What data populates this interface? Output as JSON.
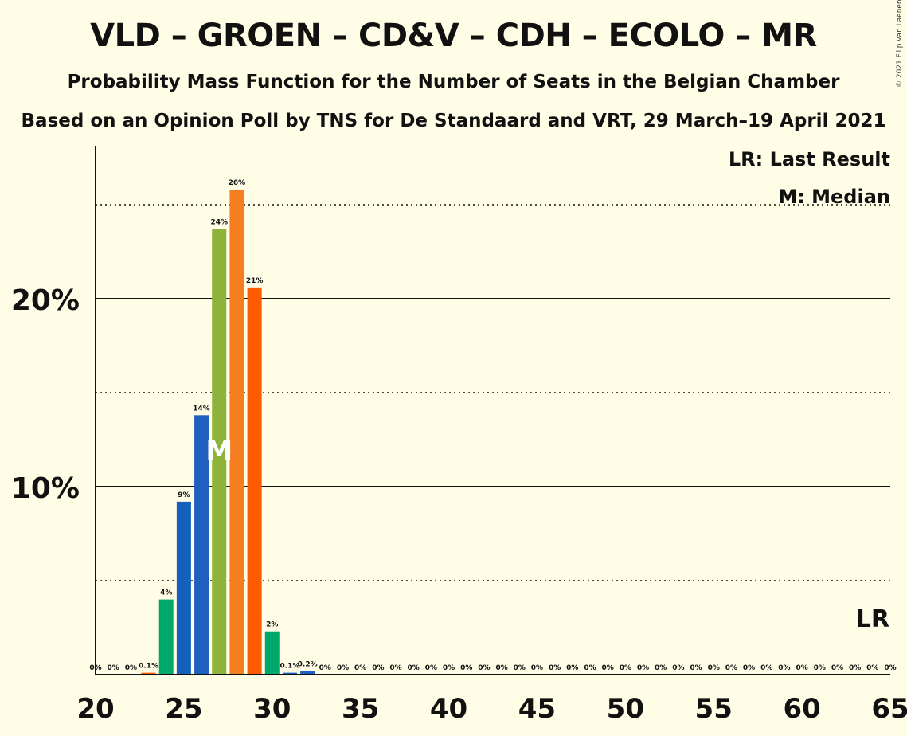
{
  "title": "VLD – GROEN – CD&V – CDH – ECOLO – MR",
  "subtitle1": "Probability Mass Function for the Number of Seats in the Belgian Chamber",
  "subtitle2": "Based on an Opinion Poll by TNS for De Standaard and VRT, 29 March–19 April 2021",
  "copyright": "© 2021 Filip van Laenen",
  "legend": {
    "last_result": "LR: Last Result",
    "median": "M: Median"
  },
  "colors": {
    "background": "#fffde6",
    "vld": "#1f5fbf",
    "groen": "#8db33a",
    "cdv": "#f57e20",
    "cdh": "#ff5a00",
    "ecolo": "#00a86b",
    "mr": "#1560bd"
  },
  "chart_data": {
    "type": "bar",
    "x": [
      20,
      21,
      22,
      23,
      24,
      25,
      26,
      27,
      28,
      29,
      30,
      31,
      32,
      33,
      34,
      35,
      36,
      37,
      38,
      39,
      40,
      41,
      42,
      43,
      44,
      45,
      46,
      47,
      48,
      49,
      50,
      51,
      52,
      53,
      54,
      55,
      56,
      57,
      58,
      59,
      60,
      61,
      62,
      63,
      64,
      65
    ],
    "values": [
      0,
      0,
      0,
      0.1,
      4,
      9.2,
      13.8,
      23.7,
      25.8,
      20.6,
      2.3,
      0.1,
      0.2,
      0,
      0,
      0,
      0,
      0,
      0,
      0,
      0,
      0,
      0,
      0,
      0,
      0,
      0,
      0,
      0,
      0,
      0,
      0,
      0,
      0,
      0,
      0,
      0,
      0,
      0,
      0,
      0,
      0,
      0,
      0,
      0,
      0
    ],
    "labels": [
      "0%",
      "0%",
      "0%",
      "0.1%",
      "4%",
      "9%",
      "14%",
      "24%",
      "26%",
      "21%",
      "2%",
      "0.1%",
      "0.2%",
      "0%",
      "0%",
      "0%",
      "0%",
      "0%",
      "0%",
      "0%",
      "0%",
      "0%",
      "0%",
      "0%",
      "0%",
      "0%",
      "0%",
      "0%",
      "0%",
      "0%",
      "0%",
      "0%",
      "0%",
      "0%",
      "0%",
      "0%",
      "0%",
      "0%",
      "0%",
      "0%",
      "0%",
      "0%",
      "0%",
      "0%",
      "0%",
      "0%"
    ],
    "bar_colors": [
      "#1f5fbf",
      "#8db33a",
      "#f57e20",
      "#ff5a00",
      "#00a86b",
      "#1560bd"
    ],
    "xticks": [
      20,
      25,
      30,
      35,
      40,
      45,
      50,
      55,
      60,
      65
    ],
    "xtick_labels": [
      "20",
      "25",
      "30",
      "35",
      "40",
      "45",
      "50",
      "55",
      "60",
      "65"
    ],
    "yticks": [
      10,
      20
    ],
    "ytick_labels": [
      "10%",
      "20%"
    ],
    "dotted_gridlines": [
      5,
      15,
      25
    ],
    "ylim": [
      0,
      28
    ],
    "xlim": [
      20,
      65
    ],
    "median_seat": 27,
    "median_marker": "M",
    "last_result_seat": 64,
    "last_result_marker": "LR"
  }
}
